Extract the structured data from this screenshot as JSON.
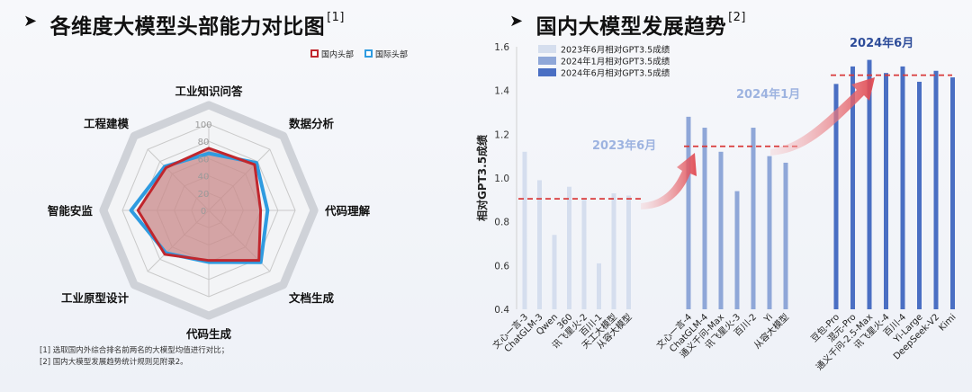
{
  "left": {
    "title": "各维度大模型头部能力对比图",
    "title_ref": "[1]",
    "notes": [
      "[1] 选取国内外综合排名前两名的大模型均值进行对比；",
      "[2] 国内大模型发展趋势统计规则见附录2。"
    ]
  },
  "right": {
    "title": "国内大模型发展趋势",
    "title_ref": "[2]",
    "annotations": [
      "2023年6月",
      "2024年1月",
      "2024年6月"
    ]
  },
  "colors": {
    "domestic": "#c0262d",
    "domestic_fill": "#c98a8a",
    "international": "#2f9be0",
    "bar_2023_06": "#d5deee",
    "bar_2024_01": "#8fa7d8",
    "bar_2024_06": "#4a6fc3",
    "reference_line": "#d93a3a"
  },
  "chart_data": [
    {
      "type": "radar",
      "axes": [
        "工业知识问答",
        "数据分析",
        "代码理解",
        "文档生成",
        "代码生成",
        "工业原型设计",
        "智能安监",
        "工程建模"
      ],
      "ticks": [
        0,
        20,
        40,
        60,
        80,
        100
      ],
      "range": [
        0,
        100
      ],
      "legend_position": "top-right",
      "series": [
        {
          "name": "国内头部",
          "values": [
            72,
            75,
            60,
            82,
            58,
            72,
            82,
            70
          ]
        },
        {
          "name": "国际头部",
          "values": [
            66,
            78,
            68,
            85,
            60,
            70,
            90,
            72
          ]
        }
      ]
    },
    {
      "type": "bar",
      "ylabel": "相对GPT3.5成绩",
      "ylim": [
        0.4,
        1.6
      ],
      "yticks": [
        0.4,
        0.6,
        0.8,
        1.0,
        1.2,
        1.4,
        1.6
      ],
      "legend_position": "top-left",
      "series": [
        {
          "name": "2023年6月相对GPT3.5成绩",
          "categories": [
            "文心一言-3",
            "ChatGLM-3",
            "Qwen",
            "360",
            "讯飞星火-2",
            "百川-1",
            "天工大模型",
            "从容大模型"
          ],
          "values": [
            1.12,
            0.99,
            0.74,
            0.96,
            0.9,
            0.61,
            0.93,
            0.92
          ]
        },
        {
          "name": "2024年1月相对GPT3.5成绩",
          "categories": [
            "文心一言-4",
            "ChatGLM-4",
            "通义千问-Max",
            "讯飞星火-3",
            "百川-2",
            "Yi",
            "从容大模型"
          ],
          "values": [
            1.28,
            1.23,
            1.12,
            0.94,
            1.23,
            1.1,
            1.07
          ]
        },
        {
          "name": "2024年6月相对GPT3.5成绩",
          "categories": [
            "豆包-Pro",
            "混元-Pro",
            "通义千问-2.5-Max",
            "讯飞星火-4",
            "百川-4",
            "Yi-Large",
            "DeepSeek-V2",
            "Kimi"
          ],
          "values": [
            1.43,
            1.51,
            1.54,
            1.48,
            1.51,
            1.44,
            1.49,
            1.46
          ]
        }
      ],
      "reference_lines": [
        {
          "period": "2023年6月",
          "value": 0.905
        },
        {
          "period": "2024年1月",
          "value": 1.145
        },
        {
          "period": "2024年6月",
          "value": 1.47
        }
      ]
    }
  ]
}
